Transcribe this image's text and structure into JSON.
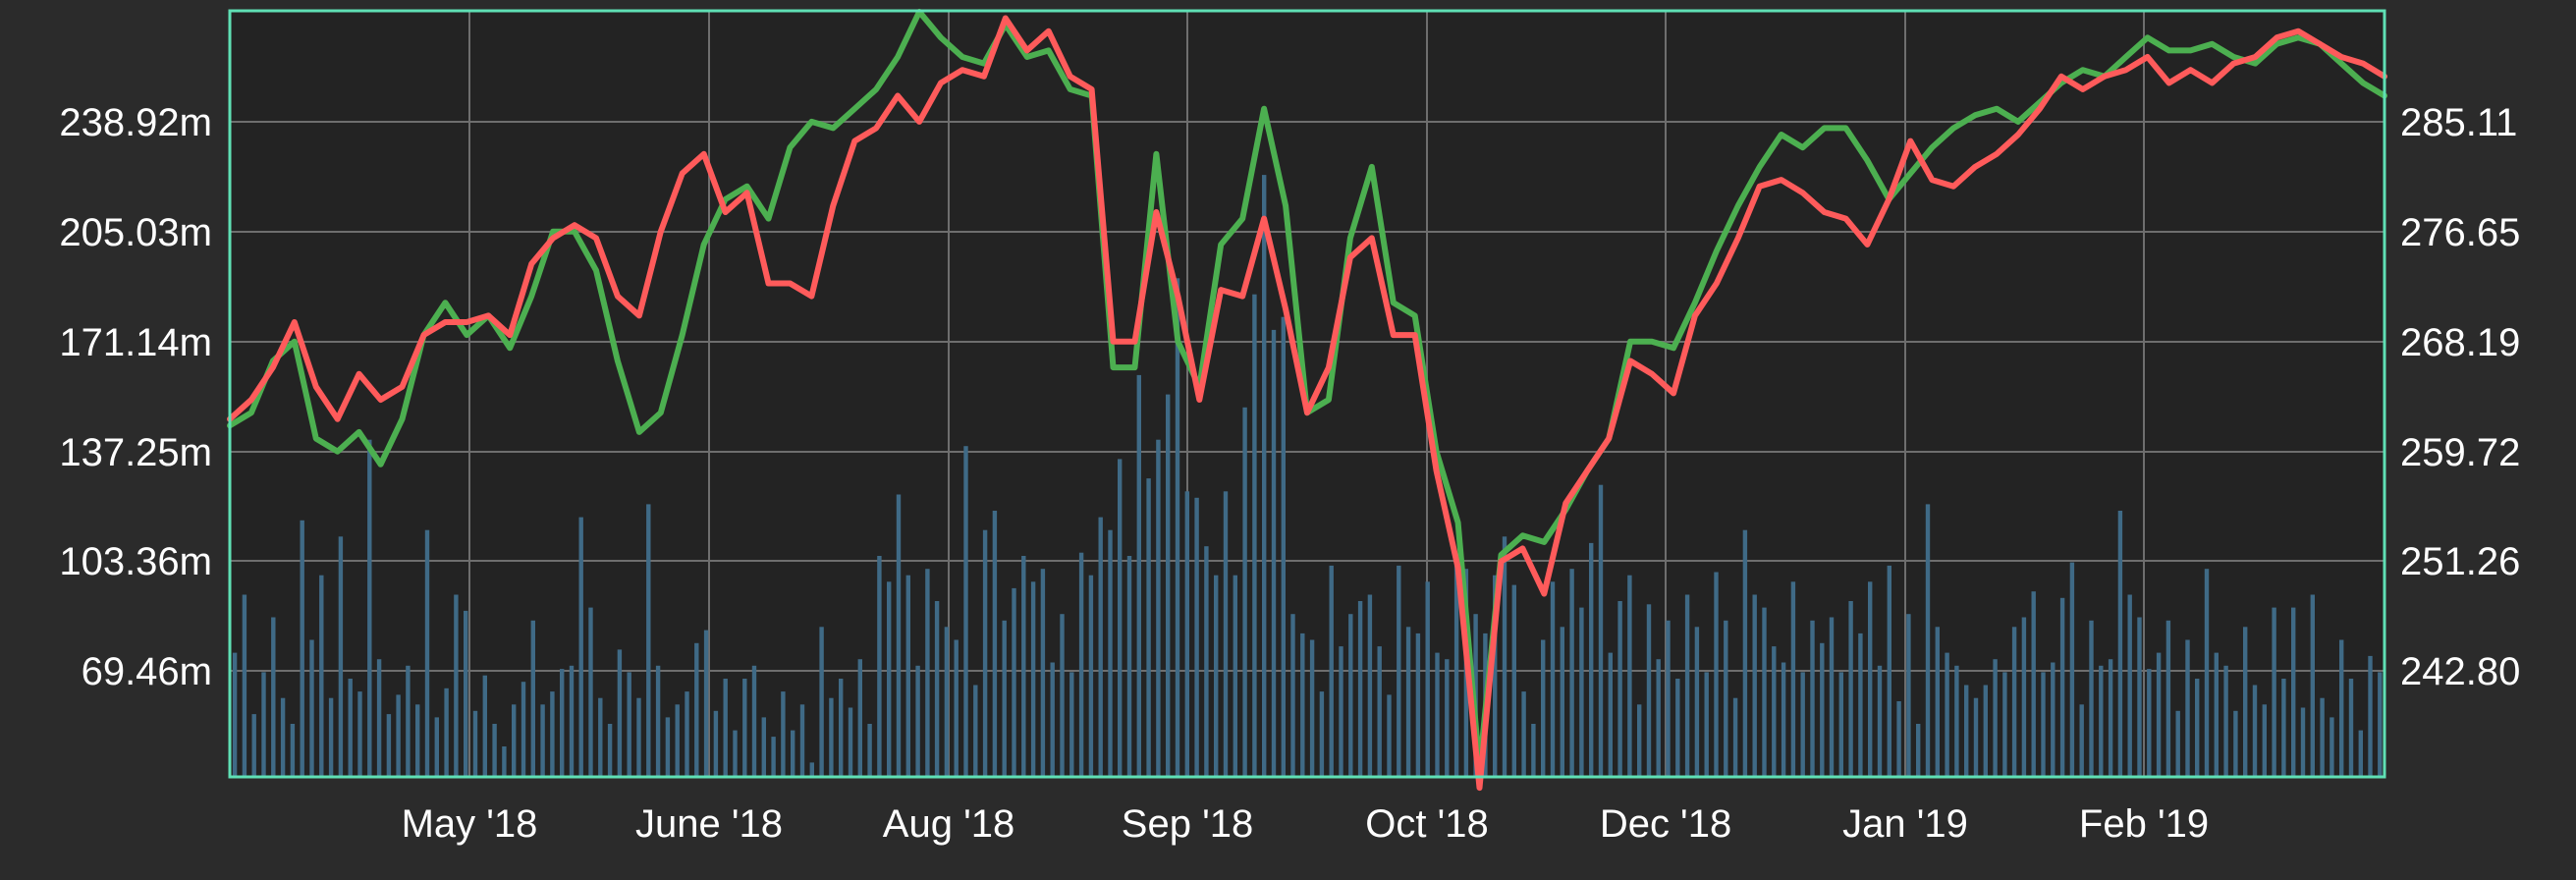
{
  "chart_data": {
    "type": "line",
    "title": "",
    "xlabel": "",
    "ylabel": "",
    "grid": true,
    "x_tick_labels": [
      "May '18",
      "June '18",
      "Aug '18",
      "Sep '18",
      "Oct '18",
      "Dec '18",
      "Jan '19",
      "Feb '19"
    ],
    "y_left_ticks": [
      "238.92m",
      "205.03m",
      "171.14m",
      "137.25m",
      "103.36m",
      "69.46m"
    ],
    "y_right_ticks": [
      "285.11",
      "276.65",
      "268.19",
      "259.72",
      "251.26",
      "242.80"
    ],
    "y_left_range": [
      35.57,
      272.81
    ],
    "y_right_range": [
      234.34,
      293.57
    ],
    "x_range": [
      0,
      1
    ],
    "colors": {
      "background": "#232323",
      "page": "#2b2b2b",
      "frame": "#5fe0b5",
      "grid": "#6e6e6e",
      "volume": "#3f6a86",
      "series_a": "#ff5b5b",
      "series_b": "#4caf50",
      "tick_text": "#ffffff"
    },
    "series": [
      {
        "color": "#ff5b5b",
        "axis": "right",
        "x": [
          0,
          0.01,
          0.02,
          0.03,
          0.04,
          0.05,
          0.06,
          0.07,
          0.08,
          0.09,
          0.1,
          0.11,
          0.12,
          0.13,
          0.14,
          0.15,
          0.16,
          0.17,
          0.18,
          0.19,
          0.2,
          0.21,
          0.22,
          0.23,
          0.24,
          0.25,
          0.26,
          0.27,
          0.28,
          0.29,
          0.3,
          0.31,
          0.32,
          0.33,
          0.34,
          0.35,
          0.36,
          0.37,
          0.38,
          0.39,
          0.4,
          0.41,
          0.42,
          0.43,
          0.44,
          0.45,
          0.46,
          0.47,
          0.48,
          0.49,
          0.5,
          0.51,
          0.52,
          0.53,
          0.54,
          0.55,
          0.56,
          0.57,
          0.58,
          0.59,
          0.6,
          0.61,
          0.62,
          0.63,
          0.64,
          0.65,
          0.66,
          0.67,
          0.68,
          0.69,
          0.7,
          0.71,
          0.72,
          0.73,
          0.74,
          0.75,
          0.76,
          0.77,
          0.78,
          0.79,
          0.8,
          0.81,
          0.82,
          0.83,
          0.84,
          0.85,
          0.86,
          0.87,
          0.88,
          0.89,
          0.9,
          0.91,
          0.92,
          0.93,
          0.94,
          0.95,
          0.96,
          0.97,
          0.98,
          0.99,
          1.0
        ],
        "y": [
          262.0,
          263.5,
          266.0,
          269.5,
          264.5,
          262.0,
          265.5,
          263.5,
          264.5,
          268.5,
          269.5,
          269.5,
          270.0,
          268.5,
          274.0,
          276.0,
          277.0,
          276.0,
          271.5,
          270.0,
          276.5,
          281.0,
          282.5,
          278.0,
          279.5,
          272.5,
          272.5,
          271.5,
          278.5,
          283.5,
          284.5,
          287.0,
          285.0,
          288.0,
          289.0,
          288.5,
          293.0,
          290.5,
          292.0,
          288.5,
          287.5,
          268.0,
          268.0,
          278.0,
          271.5,
          263.5,
          272.0,
          271.5,
          277.5,
          270.5,
          262.5,
          266.0,
          274.5,
          276.0,
          268.5,
          268.5,
          258.0,
          250.5,
          233.5,
          251.0,
          252.0,
          248.5,
          255.5,
          258.0,
          260.5,
          266.5,
          265.5,
          264.0,
          270.0,
          272.5,
          276.0,
          280.0,
          280.5,
          279.5,
          278.0,
          277.5,
          275.5,
          279.0,
          283.5,
          280.5,
          280.0,
          281.5,
          282.5,
          284.0,
          286.0,
          288.5,
          287.5,
          288.5,
          289.0,
          290.0,
          288.0,
          289.0,
          288.0,
          289.5,
          290.0,
          291.5,
          292.0,
          291.0,
          290.0,
          289.5,
          288.5
        ]
      },
      {
        "color": "#4caf50",
        "axis": "right",
        "x": [
          0,
          0.01,
          0.02,
          0.03,
          0.04,
          0.05,
          0.06,
          0.07,
          0.08,
          0.09,
          0.1,
          0.11,
          0.12,
          0.13,
          0.14,
          0.15,
          0.16,
          0.17,
          0.18,
          0.19,
          0.2,
          0.21,
          0.22,
          0.23,
          0.24,
          0.25,
          0.26,
          0.27,
          0.28,
          0.29,
          0.3,
          0.31,
          0.32,
          0.33,
          0.34,
          0.35,
          0.36,
          0.37,
          0.38,
          0.39,
          0.4,
          0.41,
          0.42,
          0.43,
          0.44,
          0.45,
          0.46,
          0.47,
          0.48,
          0.49,
          0.5,
          0.51,
          0.52,
          0.53,
          0.54,
          0.55,
          0.56,
          0.57,
          0.58,
          0.59,
          0.6,
          0.61,
          0.62,
          0.63,
          0.64,
          0.65,
          0.66,
          0.67,
          0.68,
          0.69,
          0.7,
          0.71,
          0.72,
          0.73,
          0.74,
          0.75,
          0.76,
          0.77,
          0.78,
          0.79,
          0.8,
          0.81,
          0.82,
          0.83,
          0.84,
          0.85,
          0.86,
          0.87,
          0.88,
          0.89,
          0.9,
          0.91,
          0.92,
          0.93,
          0.94,
          0.95,
          0.96,
          0.97,
          0.98,
          0.99,
          1.0
        ],
        "y": [
          261.5,
          262.5,
          266.5,
          268.0,
          260.5,
          259.5,
          261.0,
          258.5,
          262.0,
          268.5,
          271.0,
          268.5,
          270.0,
          267.5,
          271.5,
          276.5,
          276.5,
          273.5,
          266.5,
          261.0,
          262.5,
          268.5,
          275.5,
          279.0,
          280.0,
          277.5,
          283.0,
          285.0,
          284.5,
          286.0,
          287.5,
          290.0,
          293.5,
          291.5,
          290.0,
          289.5,
          292.5,
          290.0,
          290.5,
          287.5,
          287.0,
          266.0,
          266.0,
          282.5,
          268.0,
          264.5,
          275.5,
          277.5,
          286.0,
          278.5,
          262.5,
          263.5,
          276.0,
          281.5,
          271.0,
          270.0,
          259.5,
          254.0,
          235.0,
          251.5,
          253.0,
          252.5,
          255.0,
          258.0,
          260.5,
          268.0,
          268.0,
          267.5,
          271.0,
          275.0,
          278.5,
          281.5,
          284.0,
          283.0,
          284.5,
          284.5,
          282.0,
          279.0,
          281.0,
          283.0,
          284.5,
          285.5,
          286.0,
          285.0,
          286.5,
          288.0,
          289.0,
          288.5,
          290.0,
          291.5,
          290.5,
          290.5,
          291.0,
          290.0,
          289.5,
          291.0,
          291.5,
          291.0,
          289.5,
          288.0,
          287.0
        ]
      }
    ],
    "volume": {
      "axis": "left",
      "values": [
        74,
        92,
        55,
        68,
        85,
        60,
        52,
        115,
        78,
        98,
        60,
        110,
        66,
        62,
        140,
        72,
        55,
        61,
        70,
        58,
        112,
        54,
        63,
        92,
        87,
        56,
        67,
        52,
        45,
        58,
        65,
        84,
        58,
        62,
        69,
        70,
        116,
        88,
        60,
        52,
        75,
        68,
        60,
        120,
        70,
        54,
        58,
        62,
        77,
        81,
        56,
        66,
        50,
        66,
        70,
        54,
        48,
        62,
        50,
        58,
        40,
        82,
        60,
        66,
        57,
        72,
        52,
        104,
        96,
        123,
        98,
        70,
        100,
        90,
        82,
        78,
        138,
        64,
        112,
        118,
        84,
        94,
        104,
        96,
        100,
        71,
        86,
        68,
        105,
        98,
        116,
        112,
        134,
        104,
        160,
        128,
        140,
        154,
        190,
        124,
        122,
        107,
        98,
        124,
        98,
        150,
        185,
        222,
        174,
        178,
        86,
        80,
        78,
        62,
        101,
        76,
        86,
        90,
        92,
        76,
        61,
        101,
        82,
        80,
        96,
        74,
        72,
        104,
        100,
        86,
        80,
        98,
        110,
        95,
        62,
        52,
        78,
        96,
        82,
        100,
        88,
        108,
        126,
        74,
        90,
        98,
        58,
        89,
        72,
        84,
        66,
        92,
        82,
        68,
        99,
        84,
        60,
        112,
        92,
        88,
        76,
        71,
        96,
        68,
        84,
        77,
        85,
        68,
        90,
        80,
        96,
        70,
        101,
        59,
        86,
        52,
        120,
        82,
        74,
        70,
        64,
        60,
        64,
        72,
        68,
        82,
        85,
        93,
        68,
        71,
        91,
        102,
        58,
        84,
        70,
        72,
        118,
        92,
        85,
        69,
        74,
        84,
        56,
        78,
        66,
        100,
        74,
        70,
        56,
        82,
        64,
        58,
        88,
        66,
        88,
        57,
        92,
        60,
        54,
        78,
        66,
        50,
        73,
        68
      ]
    }
  }
}
